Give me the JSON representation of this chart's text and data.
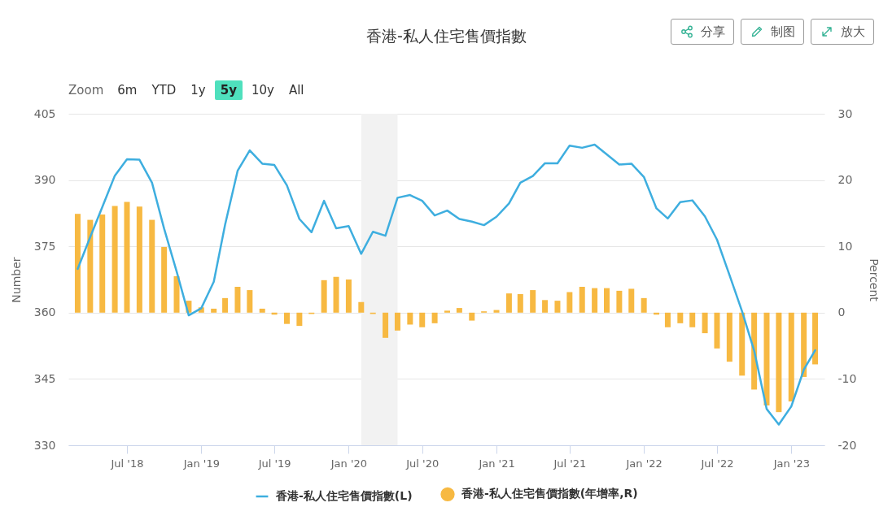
{
  "chart_data": {
    "type": "line",
    "title": "香港-私人住宅售價指數",
    "ylabel": "Number",
    "y2label": "Percent",
    "x": [
      "2018-03",
      "2018-04",
      "2018-05",
      "2018-06",
      "2018-07",
      "2018-08",
      "2018-09",
      "2018-10",
      "2018-11",
      "2018-12",
      "2019-01",
      "2019-02",
      "2019-03",
      "2019-04",
      "2019-05",
      "2019-06",
      "2019-07",
      "2019-08",
      "2019-09",
      "2019-10",
      "2019-11",
      "2019-12",
      "2020-01",
      "2020-02",
      "2020-03",
      "2020-04",
      "2020-05",
      "2020-06",
      "2020-07",
      "2020-08",
      "2020-09",
      "2020-10",
      "2020-11",
      "2020-12",
      "2021-01",
      "2021-02",
      "2021-03",
      "2021-04",
      "2021-05",
      "2021-06",
      "2021-07",
      "2021-08",
      "2021-09",
      "2021-10",
      "2021-11",
      "2021-12",
      "2022-01",
      "2022-02",
      "2022-03",
      "2022-04",
      "2022-05",
      "2022-06",
      "2022-07",
      "2022-08",
      "2022-09",
      "2022-10",
      "2022-11",
      "2022-12",
      "2023-01",
      "2023-02",
      "2023-03"
    ],
    "xlim": [
      "2018-02-16",
      "2023-03-14"
    ],
    "xticks": [
      {
        "value": "2018-07",
        "label": "Jul '18"
      },
      {
        "value": "2019-01",
        "label": "Jan '19"
      },
      {
        "value": "2019-07",
        "label": "Jul '19"
      },
      {
        "value": "2020-01",
        "label": "Jan '20"
      },
      {
        "value": "2020-07",
        "label": "Jul '20"
      },
      {
        "value": "2021-01",
        "label": "Jan '21"
      },
      {
        "value": "2021-07",
        "label": "Jul '21"
      },
      {
        "value": "2022-01",
        "label": "Jan '22"
      },
      {
        "value": "2022-07",
        "label": "Jul '22"
      },
      {
        "value": "2023-01",
        "label": "Jan '23"
      }
    ],
    "ylim": [
      330,
      405
    ],
    "yticks": [
      330,
      345,
      360,
      375,
      390,
      405
    ],
    "y2lim": [
      -20,
      30
    ],
    "y2ticks": [
      -20,
      -10,
      0,
      10,
      20,
      30
    ],
    "series": [
      {
        "name": "香港-私人住宅售價指數(L)",
        "color": "#3eaedf",
        "values": [
          369.9,
          377.1,
          383.9,
          391.0,
          394.7,
          394.6,
          389.4,
          379.0,
          369.3,
          359.4,
          361.0,
          367.0,
          379.9,
          392.1,
          396.7,
          393.7,
          393.4,
          388.8,
          381.2,
          378.2,
          385.3,
          379.1,
          379.6,
          373.3,
          378.3,
          377.4,
          386.0,
          386.6,
          385.3,
          382.0,
          383.1,
          381.2,
          380.6,
          379.8,
          381.7,
          384.7,
          389.4,
          390.9,
          393.8,
          393.8,
          397.8,
          397.3,
          398.0,
          395.8,
          393.5,
          393.7,
          390.7,
          383.6,
          381.3,
          385.0,
          385.4,
          381.8,
          376.5,
          368.5,
          360.3,
          351.4,
          338.2,
          334.7,
          338.8,
          347.1,
          351.5
        ]
      },
      {
        "name": "香港-私人住宅售價指數(年增率,R)",
        "type": "bar",
        "axis": "y2",
        "color": "#f7b942",
        "values": [
          14.9,
          14.0,
          14.8,
          16.1,
          16.7,
          16.0,
          14.0,
          9.9,
          5.5,
          1.8,
          0.8,
          0.6,
          2.2,
          3.9,
          3.4,
          0.6,
          -0.3,
          -1.7,
          -2.0,
          -0.2,
          4.9,
          5.4,
          5.0,
          1.6,
          -0.2,
          -3.8,
          -2.7,
          -1.8,
          -2.2,
          -1.6,
          0.3,
          0.7,
          -1.2,
          0.2,
          0.4,
          2.9,
          2.8,
          3.4,
          1.9,
          1.8,
          3.1,
          3.9,
          3.7,
          3.7,
          3.3,
          3.6,
          2.2,
          -0.3,
          -2.2,
          -1.6,
          -2.2,
          -3.1,
          -5.4,
          -7.4,
          -9.5,
          -11.6,
          -14.0,
          -15.0,
          -13.4,
          -9.7,
          -7.8
        ]
      }
    ],
    "bands": [
      {
        "axis": "x",
        "from": "2020-02",
        "to": "2020-05",
        "color": "#f2f2f2"
      }
    ],
    "grid": "y",
    "legend": "bottom",
    "annotations": [
      "分享",
      "制图",
      "放大",
      "Zoom",
      "6m",
      "YTD",
      "1y",
      "5y",
      "10y",
      "All"
    ]
  }
}
